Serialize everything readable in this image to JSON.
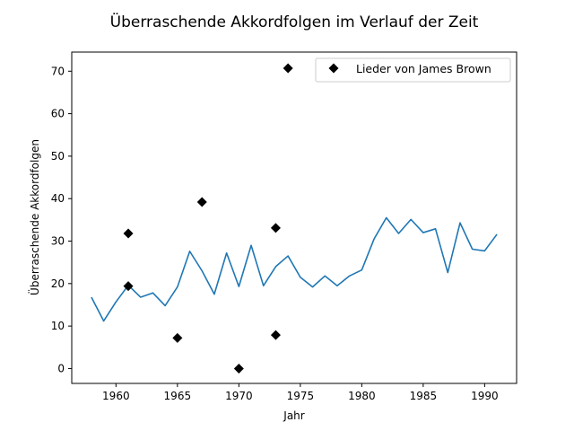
{
  "chart_data": {
    "type": "line",
    "title": "Überraschende Akkordfolgen im Verlauf der Zeit",
    "xlabel": "Jahr",
    "ylabel": "Überraschende Akkordfolgen",
    "xlim": [
      1956.4,
      1992.6
    ],
    "ylim": [
      -3.5,
      74.5
    ],
    "xticks": [
      1960,
      1965,
      1970,
      1975,
      1980,
      1985,
      1990
    ],
    "yticks": [
      0,
      10,
      20,
      30,
      40,
      50,
      60,
      70
    ],
    "grid": false,
    "legend_position": "top-right",
    "series": [
      {
        "type": "line",
        "color": "#1f77b4",
        "x": [
          1958,
          1959,
          1960,
          1961,
          1962,
          1963,
          1964,
          1965,
          1966,
          1967,
          1968,
          1969,
          1970,
          1971,
          1972,
          1973,
          1974,
          1975,
          1976,
          1977,
          1978,
          1979,
          1980,
          1981,
          1982,
          1983,
          1984,
          1985,
          1986,
          1987,
          1988,
          1989,
          1990,
          1991
        ],
        "y": [
          16.8,
          11.2,
          15.7,
          19.6,
          16.8,
          17.8,
          14.8,
          19.2,
          27.6,
          23.0,
          17.5,
          27.2,
          19.3,
          29.0,
          19.5,
          24.0,
          26.5,
          21.5,
          19.2,
          21.8,
          19.5,
          21.8,
          23.2,
          30.5,
          35.5,
          31.8,
          35.1,
          32.0,
          32.9,
          22.6,
          34.3,
          28.1,
          27.7,
          31.6
        ]
      },
      {
        "type": "scatter",
        "name": "Lieder von James Brown",
        "marker": "diamond",
        "color": "#000000",
        "x": [
          1961,
          1961,
          1965,
          1967,
          1970,
          1973,
          1973,
          1974
        ],
        "y": [
          31.8,
          19.4,
          7.2,
          39.2,
          0,
          33.1,
          7.9,
          70.7
        ]
      }
    ]
  }
}
